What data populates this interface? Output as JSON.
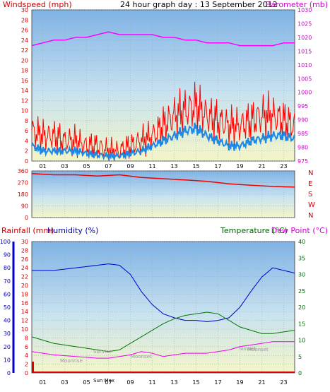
{
  "chart_data": [
    {
      "type": "line",
      "title": "24 hour graph day : 13 September 2012",
      "left_axis_label": "Windspeed (mph)",
      "right_axis_label": "Barometer (mb)",
      "x_ticks": [
        "01",
        "03",
        "05",
        "07",
        "09",
        "11",
        "13",
        "15",
        "17",
        "19",
        "21",
        "23"
      ],
      "wind_ylim": [
        0,
        30
      ],
      "wind_ticks": [
        0,
        2,
        4,
        6,
        8,
        10,
        12,
        14,
        16,
        18,
        20,
        22,
        24,
        26,
        28,
        30
      ],
      "baro_ylim": [
        975,
        1030
      ],
      "baro_ticks": [
        975,
        980,
        985,
        990,
        995,
        1000,
        1005,
        1010,
        1015,
        1020,
        1025,
        1030
      ],
      "grid": true,
      "colors": {
        "gust": "#ff0000",
        "avg": "#1e88e5",
        "baro": "#ff00ff",
        "left_text": "#cc0000",
        "right_text": "#cc00cc"
      },
      "series": [
        {
          "name": "Windspeed (mph)",
          "x": [
            0,
            1,
            2,
            3,
            4,
            5,
            6,
            7,
            8,
            9,
            10,
            11,
            12,
            13,
            14,
            15,
            16,
            17,
            18,
            19,
            20,
            21,
            22,
            23,
            24
          ],
          "values": [
            6,
            5,
            5,
            4,
            4,
            3,
            3,
            2,
            2,
            3,
            4,
            5,
            7,
            9,
            10,
            11,
            9,
            8,
            7,
            7,
            8,
            9,
            9,
            8,
            7
          ]
        },
        {
          "name": "Average (mph)",
          "x": [
            0,
            1,
            2,
            3,
            4,
            5,
            6,
            7,
            8,
            9,
            10,
            11,
            12,
            13,
            14,
            15,
            16,
            17,
            18,
            19,
            20,
            21,
            22,
            23,
            24
          ],
          "values": [
            3,
            2,
            2,
            2,
            2,
            1.5,
            1.2,
            1,
            1,
            1.5,
            2,
            3,
            4,
            5,
            6,
            6.5,
            5,
            4,
            3,
            3,
            4,
            4.5,
            5,
            5,
            4.5
          ]
        },
        {
          "name": "Barometer (mb)",
          "x": [
            0,
            1,
            2,
            3,
            4,
            5,
            6,
            7,
            8,
            9,
            10,
            11,
            12,
            13,
            14,
            15,
            16,
            17,
            18,
            19,
            20,
            21,
            22,
            23,
            24
          ],
          "values": [
            1017,
            1018,
            1019,
            1019,
            1020,
            1020,
            1021,
            1022,
            1021,
            1021,
            1021,
            1021,
            1020,
            1020,
            1019,
            1019,
            1018,
            1018,
            1018,
            1017,
            1017,
            1017,
            1017,
            1018,
            1018
          ]
        }
      ]
    },
    {
      "type": "scatter",
      "ylim": [
        0,
        360
      ],
      "y_ticks": [
        0,
        90,
        180,
        270,
        360
      ],
      "compass": [
        "N",
        "W",
        "S",
        "E",
        "N"
      ],
      "series": [
        {
          "name": "Wind Direction",
          "x": [
            0,
            2,
            4,
            6,
            8,
            10,
            12,
            14,
            16,
            18,
            20,
            22,
            24
          ],
          "values": [
            340,
            330,
            330,
            320,
            330,
            310,
            300,
            290,
            280,
            260,
            250,
            240,
            235
          ]
        }
      ]
    },
    {
      "type": "line",
      "labels": {
        "rain": "Rainfall (mm)",
        "hum": "Humidity (%)",
        "temp": "Temperature (°C)",
        "dew": "Dew Point (°C)"
      },
      "rain_ylim": [
        0,
        30
      ],
      "rain_ticks": [
        0,
        2,
        4,
        6,
        8,
        10,
        12,
        14,
        16,
        18,
        20,
        22,
        24,
        26,
        28,
        30
      ],
      "hum_ylim": [
        0,
        100
      ],
      "hum_ticks": [
        0,
        10,
        20,
        30,
        40,
        50,
        60,
        70,
        80,
        90,
        100
      ],
      "temp_ylim": [
        0,
        40
      ],
      "temp_ticks": [
        0,
        5,
        10,
        15,
        20,
        25,
        30,
        35,
        40
      ],
      "annotations": [
        "Moonrise",
        "Sunrise",
        "Sun Max",
        "Moonset",
        "Sunset",
        "Moonset"
      ],
      "series": [
        {
          "name": "Humidity (%)",
          "x": [
            0,
            2,
            4,
            6,
            7,
            8,
            9,
            10,
            11,
            12,
            13,
            14,
            15,
            16,
            17,
            18,
            19,
            20,
            21,
            22,
            23,
            24
          ],
          "values": [
            78,
            78,
            80,
            82,
            83,
            82,
            75,
            62,
            52,
            45,
            42,
            40,
            40,
            39,
            40,
            42,
            50,
            62,
            73,
            80,
            78,
            76
          ]
        },
        {
          "name": "Temperature (°C)",
          "x": [
            0,
            2,
            4,
            6,
            7,
            8,
            9,
            10,
            11,
            12,
            13,
            14,
            15,
            16,
            17,
            18,
            19,
            20,
            21,
            22,
            23,
            24
          ],
          "values": [
            11,
            9,
            8,
            7,
            6.5,
            7,
            9,
            11,
            13,
            15,
            16.5,
            17.5,
            18,
            18.5,
            18,
            16,
            14,
            13,
            12,
            12,
            12.5,
            13
          ]
        },
        {
          "name": "Dew Point (°C)",
          "x": [
            0,
            2,
            4,
            6,
            7,
            8,
            9,
            10,
            11,
            12,
            13,
            14,
            15,
            16,
            17,
            18,
            19,
            20,
            21,
            22,
            23,
            24
          ],
          "values": [
            6.5,
            5.5,
            5,
            4.5,
            4.5,
            5,
            5.5,
            6.5,
            6,
            5,
            5.5,
            6,
            6,
            6,
            6.5,
            7,
            8,
            8.5,
            9,
            9.5,
            9.5,
            9.5
          ]
        },
        {
          "name": "Rainfall (mm)",
          "x": [
            0,
            24
          ],
          "values": [
            0,
            0
          ]
        }
      ]
    }
  ]
}
